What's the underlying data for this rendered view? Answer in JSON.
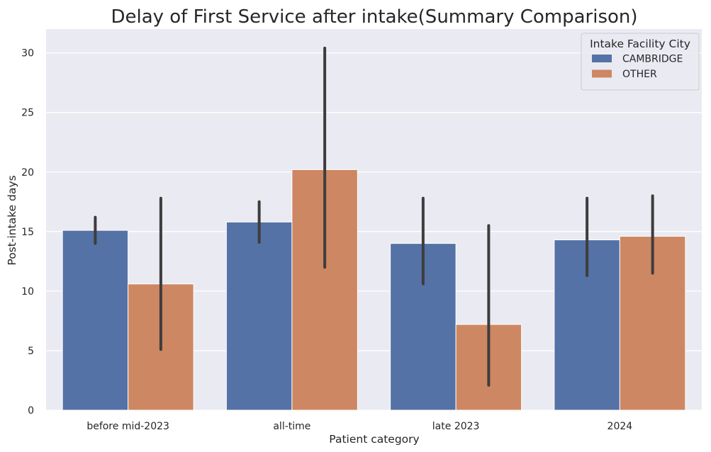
{
  "chart_data": {
    "type": "bar",
    "title": "Delay of First Service after intake(Summary Comparison)",
    "xlabel": "Patient category",
    "ylabel": "Post-intake days",
    "categories": [
      "before mid-2023",
      "all-time",
      "late 2023",
      "2024"
    ],
    "ylim": [
      0,
      32
    ],
    "yticks": [
      0,
      5,
      10,
      15,
      20,
      25,
      30
    ],
    "grid": true,
    "legend": {
      "title": "Intake Facility City",
      "placement": "top-right"
    },
    "series": [
      {
        "name": "CAMBRIDGE",
        "color": "#5572a6",
        "values": [
          15.1,
          15.8,
          14.0,
          14.3
        ],
        "error_low": [
          14.0,
          14.1,
          10.6,
          11.3
        ],
        "error_high": [
          16.2,
          17.5,
          17.8,
          17.8
        ]
      },
      {
        "name": "OTHER",
        "color": "#cd8762",
        "values": [
          10.6,
          20.2,
          7.2,
          14.6
        ],
        "error_low": [
          5.1,
          12.0,
          2.1,
          11.5
        ],
        "error_high": [
          17.8,
          30.4,
          15.5,
          18.0
        ]
      }
    ],
    "colors": {
      "background": "#eaeaf2",
      "grid": "#ffffff",
      "errorbar": "#3d3d3d"
    }
  }
}
